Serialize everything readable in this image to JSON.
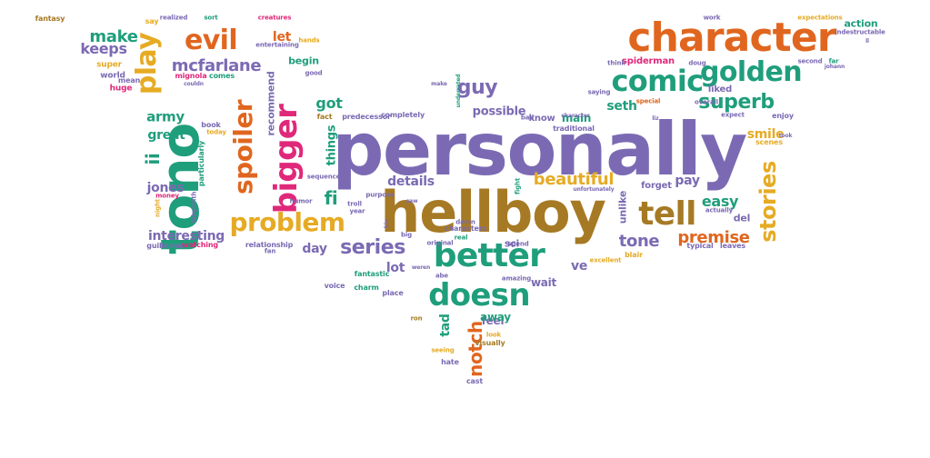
{
  "palette": {
    "purple": "#7b6ab3",
    "orange": "#e0661f",
    "green": "#1f9e7c",
    "gold": "#e6ab24",
    "brown": "#a67a24",
    "pink": "#e0287a"
  },
  "words": [
    {
      "text": "personally",
      "c": "purple",
      "v": false
    },
    {
      "text": "hellboy",
      "c": "brown",
      "v": false
    },
    {
      "text": "character",
      "c": "orange",
      "v": false
    },
    {
      "text": "tono",
      "c": "green",
      "v": true
    },
    {
      "text": "better",
      "c": "green",
      "v": false
    },
    {
      "text": "comic",
      "c": "green",
      "v": false
    },
    {
      "text": "golden",
      "c": "green",
      "v": false
    },
    {
      "text": "doesn",
      "c": "green",
      "v": false
    },
    {
      "text": "problem",
      "c": "gold",
      "v": false
    },
    {
      "text": "tell",
      "c": "brown",
      "v": false
    },
    {
      "text": "bigger",
      "c": "pink",
      "v": true
    },
    {
      "text": "spoiler",
      "c": "orange",
      "v": true
    },
    {
      "text": "play",
      "c": "gold",
      "v": true
    },
    {
      "text": "evil",
      "c": "orange",
      "v": false
    },
    {
      "text": "stories",
      "c": "gold",
      "v": true
    },
    {
      "text": "superb",
      "c": "green",
      "v": false
    },
    {
      "text": "series",
      "c": "purple",
      "v": false
    },
    {
      "text": "mcfarlane",
      "c": "purple",
      "v": false
    },
    {
      "text": "guy",
      "c": "purple",
      "v": false
    },
    {
      "text": "make",
      "c": "green",
      "v": false
    },
    {
      "text": "tone",
      "c": "purple",
      "v": false
    },
    {
      "text": "premise",
      "c": "orange",
      "v": false
    },
    {
      "text": "beautiful",
      "c": "gold",
      "v": false
    },
    {
      "text": "easy",
      "c": "green",
      "v": false
    },
    {
      "text": "fi",
      "c": "green",
      "v": false
    },
    {
      "text": "pay",
      "c": "purple",
      "v": false
    },
    {
      "text": "notch",
      "c": "orange",
      "v": true
    },
    {
      "text": "ii",
      "c": "green",
      "v": true
    },
    {
      "text": "keeps",
      "c": "purple",
      "v": false
    },
    {
      "text": "interesting",
      "c": "purple",
      "v": false
    },
    {
      "text": "army",
      "c": "green",
      "v": false
    },
    {
      "text": "great",
      "c": "green",
      "v": false
    },
    {
      "text": "jones",
      "c": "purple",
      "v": false
    },
    {
      "text": "got",
      "c": "green",
      "v": false
    },
    {
      "text": "let",
      "c": "orange",
      "v": false
    },
    {
      "text": "details",
      "c": "purple",
      "v": false
    },
    {
      "text": "seth",
      "c": "green",
      "v": false
    },
    {
      "text": "smile",
      "c": "gold",
      "v": false
    },
    {
      "text": "possible",
      "c": "purple",
      "v": false
    },
    {
      "text": "day",
      "c": "purple",
      "v": false
    },
    {
      "text": "lot",
      "c": "purple",
      "v": false
    },
    {
      "text": "wait",
      "c": "purple",
      "v": false
    },
    {
      "text": "tad",
      "c": "green",
      "v": true
    },
    {
      "text": "main",
      "c": "green",
      "v": false
    },
    {
      "text": "things",
      "c": "green",
      "v": true
    },
    {
      "text": "recommend",
      "c": "purple",
      "v": true
    },
    {
      "text": "ve",
      "c": "purple",
      "v": false
    },
    {
      "text": "del",
      "c": "purple",
      "v": false
    },
    {
      "text": "feel",
      "c": "purple",
      "v": false
    },
    {
      "text": "away",
      "c": "green",
      "v": false
    },
    {
      "text": "unlike",
      "c": "purple",
      "v": true
    },
    {
      "text": "action",
      "c": "green",
      "v": false
    },
    {
      "text": "begin",
      "c": "green",
      "v": false
    },
    {
      "text": "sci",
      "c": "purple",
      "v": false
    },
    {
      "text": "liked",
      "c": "purple",
      "v": false
    },
    {
      "text": "forget",
      "c": "purple",
      "v": false
    },
    {
      "text": "know",
      "c": "purple",
      "v": false
    },
    {
      "text": "spiderman",
      "c": "pink",
      "v": false
    },
    {
      "text": "fantasy",
      "c": "brown",
      "v": false
    },
    {
      "text": "say",
      "c": "gold",
      "v": false
    },
    {
      "text": "super",
      "c": "gold",
      "v": false
    },
    {
      "text": "world",
      "c": "purple",
      "v": false
    },
    {
      "text": "huge",
      "c": "pink",
      "v": false
    },
    {
      "text": "mean",
      "c": "purple",
      "v": false
    },
    {
      "text": "mignola",
      "c": "pink",
      "v": false
    },
    {
      "text": "comes",
      "c": "green",
      "v": false
    },
    {
      "text": "good",
      "c": "purple",
      "v": false
    },
    {
      "text": "fact",
      "c": "brown",
      "v": false
    },
    {
      "text": "predecessor",
      "c": "purple",
      "v": false
    },
    {
      "text": "completely",
      "c": "purple",
      "v": false
    },
    {
      "text": "book",
      "c": "purple",
      "v": false
    },
    {
      "text": "today",
      "c": "gold",
      "v": false
    },
    {
      "text": "particularly",
      "c": "green",
      "v": true
    },
    {
      "text": "money",
      "c": "pink",
      "v": false
    },
    {
      "text": "night",
      "c": "gold",
      "v": true
    },
    {
      "text": "labyrinth",
      "c": "purple",
      "v": true
    },
    {
      "text": "guillermo",
      "c": "purple",
      "v": false
    },
    {
      "text": "watching",
      "c": "pink",
      "v": false
    },
    {
      "text": "relationship",
      "c": "purple",
      "v": false
    },
    {
      "text": "fan",
      "c": "purple",
      "v": false
    },
    {
      "text": "voice",
      "c": "purple",
      "v": false
    },
    {
      "text": "fantastic",
      "c": "green",
      "v": false
    },
    {
      "text": "charm",
      "c": "green",
      "v": false
    },
    {
      "text": "place",
      "c": "purple",
      "v": false
    },
    {
      "text": "ron",
      "c": "brown",
      "v": false
    },
    {
      "text": "seeing",
      "c": "gold",
      "v": false
    },
    {
      "text": "hate",
      "c": "purple",
      "v": false
    },
    {
      "text": "cast",
      "c": "purple",
      "v": false
    },
    {
      "text": "visually",
      "c": "brown",
      "v": false
    },
    {
      "text": "look",
      "c": "gold",
      "v": false
    },
    {
      "text": "traditional",
      "c": "purple",
      "v": false
    },
    {
      "text": "special",
      "c": "orange",
      "v": false
    },
    {
      "text": "overall",
      "c": "purple",
      "v": false
    },
    {
      "text": "expect",
      "c": "purple",
      "v": false
    },
    {
      "text": "enjoy",
      "c": "purple",
      "v": false
    },
    {
      "text": "scenes",
      "c": "gold",
      "v": false
    },
    {
      "text": "actually",
      "c": "purple",
      "v": false
    },
    {
      "text": "typical",
      "c": "purple",
      "v": false
    },
    {
      "text": "leaves",
      "c": "purple",
      "v": false
    },
    {
      "text": "excellent",
      "c": "gold",
      "v": false
    },
    {
      "text": "blair",
      "c": "gold",
      "v": false
    },
    {
      "text": "realized",
      "c": "purple",
      "v": false
    },
    {
      "text": "sort",
      "c": "green",
      "v": false
    },
    {
      "text": "creatures",
      "c": "pink",
      "v": false
    },
    {
      "text": "entertaining",
      "c": "purple",
      "v": false
    },
    {
      "text": "hands",
      "c": "gold",
      "v": false
    },
    {
      "text": "work",
      "c": "purple",
      "v": false
    },
    {
      "text": "expectations",
      "c": "gold",
      "v": false
    },
    {
      "text": "indestructable",
      "c": "purple",
      "v": false
    },
    {
      "text": "second",
      "c": "purple",
      "v": false
    },
    {
      "text": "far",
      "c": "green",
      "v": false
    },
    {
      "text": "doug",
      "c": "purple",
      "v": false
    },
    {
      "text": "think",
      "c": "purple",
      "v": false
    },
    {
      "text": "saying",
      "c": "purple",
      "v": false
    },
    {
      "text": "make",
      "c": "purple",
      "v": false
    },
    {
      "text": "underrated",
      "c": "green",
      "v": true
    },
    {
      "text": "fight",
      "c": "green",
      "v": true
    },
    {
      "text": "troll",
      "c": "purple",
      "v": false
    },
    {
      "text": "year",
      "c": "purple",
      "v": false
    },
    {
      "text": "purpose",
      "c": "purple",
      "v": false
    },
    {
      "text": "damn",
      "c": "purple",
      "v": false
    },
    {
      "text": "real",
      "c": "green",
      "v": false
    },
    {
      "text": "humor",
      "c": "purple",
      "v": false
    },
    {
      "text": "sequences",
      "c": "purple",
      "v": false
    },
    {
      "text": "big",
      "c": "purple",
      "v": false
    },
    {
      "text": "original",
      "c": "purple",
      "v": false
    },
    {
      "text": "abe",
      "c": "purple",
      "v": false
    },
    {
      "text": "amazing",
      "c": "purple",
      "v": false
    },
    {
      "text": "spend",
      "c": "purple",
      "v": false
    },
    {
      "text": "bad",
      "c": "purple",
      "v": false
    },
    {
      "text": "took",
      "c": "purple",
      "v": false
    },
    {
      "text": "ll",
      "c": "purple",
      "v": false
    },
    {
      "text": "johann",
      "c": "purple",
      "v": false
    },
    {
      "text": "couldn",
      "c": "purple",
      "v": false
    },
    {
      "text": "saw",
      "c": "purple",
      "v": false
    },
    {
      "text": "weren",
      "c": "purple",
      "v": false
    },
    {
      "text": "kin",
      "c": "purple",
      "v": true
    },
    {
      "text": "liz",
      "c": "purple",
      "v": false
    },
    {
      "text": "unfortunately",
      "c": "purple",
      "v": false
    },
    {
      "text": "character",
      "c": "purple",
      "v": false
    },
    {
      "text": "characters",
      "c": "purple",
      "v": false
    }
  ]
}
